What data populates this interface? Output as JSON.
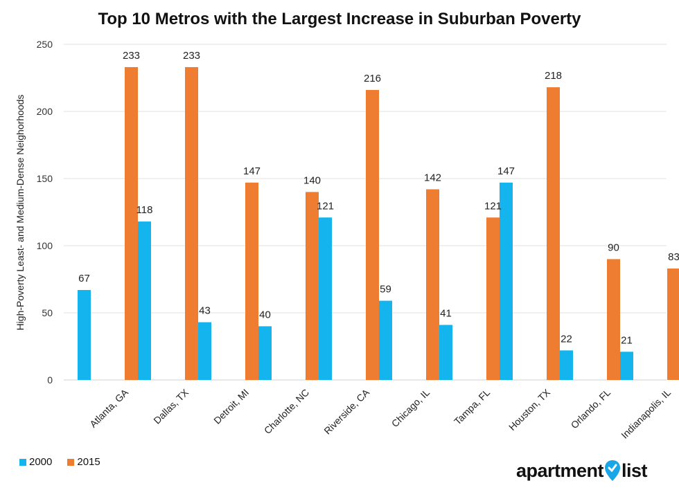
{
  "chart_data": {
    "type": "bar",
    "title": "Top 10 Metros with the Largest Increase in Suburban Poverty",
    "ylabel": "High-Poverty Least- and Medium-Dense Neighorhoods",
    "xlabel": "",
    "ylim": [
      0,
      250
    ],
    "yticks": [
      "0",
      "50",
      "100",
      "150",
      "200",
      "250"
    ],
    "grid": true,
    "legend_position": "bottom-left",
    "categories": [
      "Atlanta, GA",
      "Dallas, TX",
      "Detroit, MI",
      "Charlotte, NC",
      "Riverside, CA",
      "Chicago, IL",
      "Tampa, FL",
      "Houston, TX",
      "Orlando, FL",
      "Indianapolis, IL"
    ],
    "series": [
      {
        "name": "2000",
        "color": "#14b4ee",
        "values": [
          67,
          118,
          43,
          40,
          121,
          59,
          41,
          147,
          22,
          21
        ]
      },
      {
        "name": "2015",
        "color": "#ee7d31",
        "values": [
          233,
          233,
          147,
          140,
          216,
          142,
          121,
          218,
          90,
          83
        ]
      }
    ]
  },
  "brand": {
    "left": "apartment",
    "right": "list",
    "pin_icon": "map-pin-icon",
    "pin_color": "#1aa6e6"
  }
}
